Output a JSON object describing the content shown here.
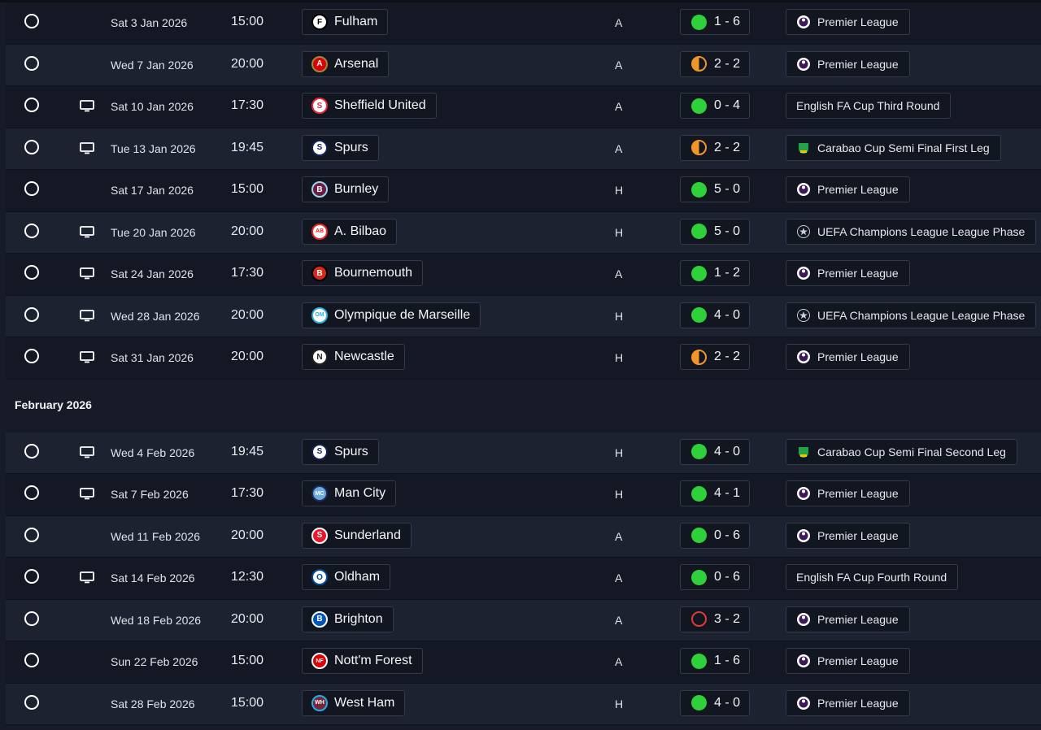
{
  "section": {
    "month_label": "February 2026"
  },
  "rows_jan": [
    {
      "date": "Sat 3 Jan 2026",
      "time": "15:00",
      "team": "Fulham",
      "crest": "fulham-crest",
      "venue": "A",
      "result": "W",
      "score": "1 - 6",
      "competition": "Premier League",
      "comp_icon": "premier-league-logo",
      "tv": false
    },
    {
      "date": "Wed 7 Jan 2026",
      "time": "20:00",
      "team": "Arsenal",
      "crest": "arsenal-crest",
      "venue": "A",
      "result": "D",
      "score": "2 - 2",
      "competition": "Premier League",
      "comp_icon": "premier-league-logo",
      "tv": false
    },
    {
      "date": "Sat 10 Jan 2026",
      "time": "17:30",
      "team": "Sheffield United",
      "crest": "sheffield-united-crest",
      "venue": "A",
      "result": "W",
      "score": "0 - 4",
      "competition": "English FA Cup Third Round",
      "comp_icon": "",
      "tv": true
    },
    {
      "date": "Tue 13 Jan 2026",
      "time": "19:45",
      "team": "Spurs",
      "crest": "spurs-crest",
      "venue": "A",
      "result": "D",
      "score": "2 - 2",
      "competition": "Carabao Cup Semi Final First Leg",
      "comp_icon": "carabao-cup-logo",
      "tv": true
    },
    {
      "date": "Sat 17 Jan 2026",
      "time": "15:00",
      "team": "Burnley",
      "crest": "burnley-crest",
      "venue": "H",
      "result": "W",
      "score": "5 - 0",
      "competition": "Premier League",
      "comp_icon": "premier-league-logo",
      "tv": false
    },
    {
      "date": "Tue 20 Jan 2026",
      "time": "20:00",
      "team": "A. Bilbao",
      "crest": "athletic-bilbao-crest",
      "venue": "H",
      "result": "W",
      "score": "5 - 0",
      "competition": "UEFA Champions League League Phase",
      "comp_icon": "champions-league-logo",
      "tv": true
    },
    {
      "date": "Sat 24 Jan 2026",
      "time": "17:30",
      "team": "Bournemouth",
      "crest": "bournemouth-crest",
      "venue": "A",
      "result": "W",
      "score": "1 - 2",
      "competition": "Premier League",
      "comp_icon": "premier-league-logo",
      "tv": true
    },
    {
      "date": "Wed 28 Jan 2026",
      "time": "20:00",
      "team": "Olympique de Marseille",
      "crest": "marseille-crest",
      "venue": "H",
      "result": "W",
      "score": "4 - 0",
      "competition": "UEFA Champions League League Phase",
      "comp_icon": "champions-league-logo",
      "tv": true
    },
    {
      "date": "Sat 31 Jan 2026",
      "time": "20:00",
      "team": "Newcastle",
      "crest": "newcastle-crest",
      "venue": "H",
      "result": "D",
      "score": "2 - 2",
      "competition": "Premier League",
      "comp_icon": "premier-league-logo",
      "tv": true
    }
  ],
  "rows_feb": [
    {
      "date": "Wed 4 Feb 2026",
      "time": "19:45",
      "team": "Spurs",
      "crest": "spurs-crest",
      "venue": "H",
      "result": "W",
      "score": "4 - 0",
      "competition": "Carabao Cup Semi Final Second Leg",
      "comp_icon": "carabao-cup-logo",
      "tv": true
    },
    {
      "date": "Sat 7 Feb 2026",
      "time": "17:30",
      "team": "Man City",
      "crest": "man-city-crest",
      "venue": "H",
      "result": "W",
      "score": "4 - 1",
      "competition": "Premier League",
      "comp_icon": "premier-league-logo",
      "tv": true
    },
    {
      "date": "Wed 11 Feb 2026",
      "time": "20:00",
      "team": "Sunderland",
      "crest": "sunderland-crest",
      "venue": "A",
      "result": "W",
      "score": "0 - 6",
      "competition": "Premier League",
      "comp_icon": "premier-league-logo",
      "tv": false
    },
    {
      "date": "Sat 14 Feb 2026",
      "time": "12:30",
      "team": "Oldham",
      "crest": "oldham-crest",
      "venue": "A",
      "result": "W",
      "score": "0 - 6",
      "competition": "English FA Cup Fourth Round",
      "comp_icon": "",
      "tv": true
    },
    {
      "date": "Wed 18 Feb 2026",
      "time": "20:00",
      "team": "Brighton",
      "crest": "brighton-crest",
      "venue": "A",
      "result": "L",
      "score": "3 - 2",
      "competition": "Premier League",
      "comp_icon": "premier-league-logo",
      "tv": false
    },
    {
      "date": "Sun 22 Feb 2026",
      "time": "15:00",
      "team": "Nott'm Forest",
      "crest": "nottm-forest-crest",
      "venue": "A",
      "result": "W",
      "score": "1 - 6",
      "competition": "Premier League",
      "comp_icon": "premier-league-logo",
      "tv": false
    },
    {
      "date": "Sat 28 Feb 2026",
      "time": "15:00",
      "team": "West Ham",
      "crest": "west-ham-crest",
      "venue": "H",
      "result": "W",
      "score": "4 - 0",
      "competition": "Premier League",
      "comp_icon": "premier-league-logo",
      "tv": false
    }
  ],
  "colors": {
    "win": "#2fd03a",
    "draw": "#f1962a",
    "loss": "#e03a3a",
    "background": "#171b27"
  }
}
